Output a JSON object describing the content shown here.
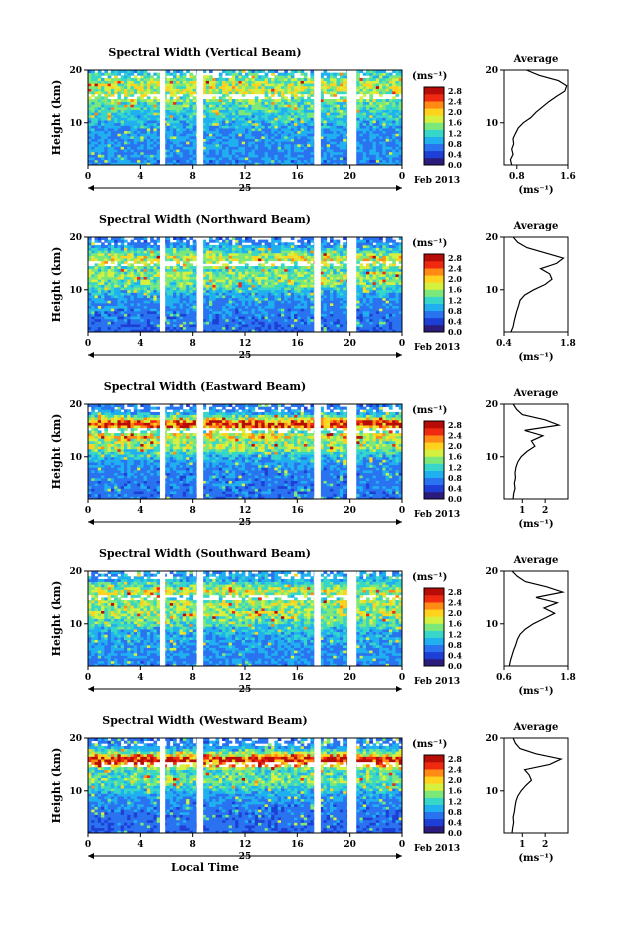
{
  "figure": {
    "xlabel": "Local Time",
    "date_label": "25",
    "month_label": "Feb 2013",
    "colorbar_unit": "(ms⁻¹)",
    "average_title": "Average",
    "average_xlabel": "(ms⁻¹)",
    "colorscale": [
      "#2b1b7a",
      "#1e3fd6",
      "#2a73f0",
      "#20b0f0",
      "#36d6c8",
      "#7de87a",
      "#d6f040",
      "#ffd21e",
      "#ff8a14",
      "#f02a10",
      "#b80c08"
    ]
  },
  "chart_data": [
    {
      "type": "heatmap",
      "title": "Spectral Width (Vertical Beam)",
      "xlabel": "",
      "ylabel": "Height (km)",
      "xlim": [
        0,
        24
      ],
      "xticks": [
        "0",
        "4",
        "8",
        "12",
        "16",
        "20",
        "0"
      ],
      "ylim": [
        2,
        20
      ],
      "yticks": [
        "10",
        "20"
      ],
      "colorbar": {
        "range": [
          0,
          2.8
        ],
        "ticks": [
          "2.8",
          "2.4",
          "2.0",
          "1.6",
          "1.2",
          "0.8",
          "0.4",
          "0.0"
        ]
      },
      "data_gaps_hours": [
        [
          5.5,
          5.9
        ],
        [
          8.3,
          8.8
        ],
        [
          17.3,
          17.8
        ],
        [
          19.8,
          20.5
        ]
      ],
      "average": {
        "xlim": [
          0.6,
          1.6
        ],
        "xticks": [
          "0.8",
          "1.6"
        ],
        "height_km": [
          2,
          3,
          4,
          5,
          6,
          7,
          8,
          9,
          10,
          11,
          12,
          13,
          14,
          15,
          16,
          17,
          18,
          19,
          20
        ],
        "width_ms": [
          0.72,
          0.7,
          0.74,
          0.72,
          0.75,
          0.74,
          0.78,
          0.82,
          0.9,
          1.02,
          1.1,
          1.2,
          1.3,
          1.42,
          1.55,
          1.58,
          1.45,
          1.15,
          0.95
        ]
      }
    },
    {
      "type": "heatmap",
      "title": "Spectral Width (Northward Beam)",
      "xlabel": "",
      "ylabel": "Height (km)",
      "xlim": [
        0,
        24
      ],
      "xticks": [
        "0",
        "4",
        "8",
        "12",
        "16",
        "20",
        "0"
      ],
      "ylim": [
        2,
        20
      ],
      "yticks": [
        "10",
        "20"
      ],
      "colorbar": {
        "range": [
          0,
          2.8
        ],
        "ticks": [
          "2.8",
          "2.4",
          "2.0",
          "1.6",
          "1.2",
          "0.8",
          "0.4",
          "0.0"
        ]
      },
      "data_gaps_hours": [
        [
          5.5,
          5.9
        ],
        [
          8.3,
          8.8
        ],
        [
          17.3,
          17.8
        ],
        [
          19.8,
          20.5
        ]
      ],
      "average": {
        "xlim": [
          0.4,
          1.8
        ],
        "xticks": [
          "0.4",
          "1.8"
        ],
        "height_km": [
          2,
          3,
          4,
          5,
          6,
          7,
          8,
          9,
          10,
          11,
          12,
          13,
          14,
          15,
          16,
          17,
          18,
          19,
          20
        ],
        "width_ms": [
          0.55,
          0.6,
          0.62,
          0.65,
          0.68,
          0.72,
          0.75,
          0.85,
          1.05,
          1.3,
          1.45,
          1.4,
          1.2,
          1.55,
          1.7,
          1.3,
          0.9,
          0.7,
          0.6
        ]
      }
    },
    {
      "type": "heatmap",
      "title": "Spectral Width (Eastward Beam)",
      "xlabel": "",
      "ylabel": "Height (km)",
      "xlim": [
        0,
        24
      ],
      "xticks": [
        "0",
        "4",
        "8",
        "12",
        "16",
        "20",
        "0"
      ],
      "ylim": [
        2,
        20
      ],
      "yticks": [
        "10",
        "20"
      ],
      "colorbar": {
        "range": [
          0,
          2.8
        ],
        "ticks": [
          "2.8",
          "2.4",
          "2.0",
          "1.6",
          "1.2",
          "0.8",
          "0.4",
          "0.0"
        ]
      },
      "data_gaps_hours": [
        [
          5.5,
          5.9
        ],
        [
          8.3,
          8.8
        ],
        [
          17.3,
          17.8
        ],
        [
          19.8,
          20.5
        ]
      ],
      "average": {
        "xlim": [
          0.2,
          3.0
        ],
        "xticks": [
          "1",
          "2"
        ],
        "height_km": [
          2,
          3,
          4,
          5,
          6,
          7,
          8,
          9,
          10,
          11,
          12,
          13,
          14,
          15,
          16,
          17,
          18,
          19,
          20
        ],
        "width_ms": [
          0.6,
          0.62,
          0.68,
          0.65,
          0.7,
          0.68,
          0.72,
          0.8,
          0.95,
          1.2,
          1.55,
          1.4,
          1.9,
          1.1,
          2.6,
          2.0,
          1.0,
          0.75,
          0.6
        ]
      }
    },
    {
      "type": "heatmap",
      "title": "Spectral Width (Southward Beam)",
      "xlabel": "",
      "ylabel": "Height (km)",
      "xlim": [
        0,
        24
      ],
      "xticks": [
        "0",
        "4",
        "8",
        "12",
        "16",
        "20",
        "0"
      ],
      "ylim": [
        2,
        20
      ],
      "yticks": [
        "10",
        "20"
      ],
      "colorbar": {
        "range": [
          0,
          2.8
        ],
        "ticks": [
          "2.8",
          "2.4",
          "2.0",
          "1.6",
          "1.2",
          "0.8",
          "0.4",
          "0.0"
        ]
      },
      "data_gaps_hours": [
        [
          5.5,
          5.9
        ],
        [
          8.3,
          8.8
        ],
        [
          17.3,
          17.8
        ],
        [
          19.8,
          20.5
        ]
      ],
      "average": {
        "xlim": [
          0.6,
          1.8
        ],
        "xticks": [
          "0.6",
          "1.8"
        ],
        "height_km": [
          2,
          3,
          4,
          5,
          6,
          7,
          8,
          9,
          10,
          11,
          12,
          13,
          14,
          15,
          16,
          17,
          18,
          19,
          20
        ],
        "width_ms": [
          0.7,
          0.72,
          0.75,
          0.78,
          0.82,
          0.85,
          0.9,
          1.0,
          1.15,
          1.35,
          1.55,
          1.35,
          1.6,
          1.2,
          1.7,
          1.4,
          1.0,
          0.85,
          0.75
        ]
      }
    },
    {
      "type": "heatmap",
      "title": "Spectral Width (Westward Beam)",
      "xlabel": "Local Time",
      "ylabel": "Height (km)",
      "xlim": [
        0,
        24
      ],
      "xticks": [
        "0",
        "4",
        "8",
        "12",
        "16",
        "20",
        "0"
      ],
      "ylim": [
        2,
        20
      ],
      "yticks": [
        "10",
        "20"
      ],
      "colorbar": {
        "range": [
          0,
          2.8
        ],
        "ticks": [
          "2.8",
          "2.4",
          "2.0",
          "1.6",
          "1.2",
          "0.8",
          "0.4",
          "0.0"
        ]
      },
      "data_gaps_hours": [
        [
          5.5,
          5.9
        ],
        [
          8.3,
          8.8
        ],
        [
          17.3,
          17.8
        ],
        [
          19.8,
          20.5
        ]
      ],
      "average": {
        "xlim": [
          0.2,
          3.0
        ],
        "xticks": [
          "1",
          "2"
        ],
        "height_km": [
          2,
          3,
          4,
          5,
          6,
          7,
          8,
          9,
          10,
          11,
          12,
          13,
          14,
          15,
          16,
          17,
          18,
          19,
          20
        ],
        "width_ms": [
          0.55,
          0.58,
          0.62,
          0.6,
          0.65,
          0.68,
          0.72,
          0.8,
          0.95,
          1.15,
          1.4,
          1.3,
          1.1,
          2.2,
          2.7,
          1.6,
          0.9,
          0.7,
          0.6
        ]
      }
    }
  ]
}
